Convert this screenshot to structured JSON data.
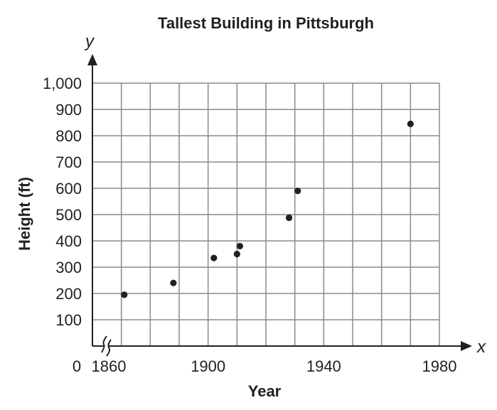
{
  "chart_data": {
    "type": "scatter",
    "title": "Tallest Building in Pittsburgh",
    "xlabel": "Year",
    "ylabel": "Height (ft)",
    "x_axis_var": "x",
    "y_axis_var": "y",
    "origin_label": "0",
    "xlim": [
      1860,
      1980
    ],
    "ylim": [
      0,
      1000
    ],
    "x_axis_break": true,
    "grid": true,
    "x_gridlines": [
      1860,
      1870,
      1880,
      1890,
      1900,
      1910,
      1920,
      1930,
      1940,
      1950,
      1960,
      1970,
      1980
    ],
    "y_gridlines": [
      100,
      200,
      300,
      400,
      500,
      600,
      700,
      800,
      900,
      1000
    ],
    "x_ticks": [
      {
        "value": 1860,
        "label": "1860"
      },
      {
        "value": 1900,
        "label": "1900"
      },
      {
        "value": 1940,
        "label": "1940"
      },
      {
        "value": 1980,
        "label": "1980"
      }
    ],
    "y_ticks": [
      {
        "value": 100,
        "label": "100"
      },
      {
        "value": 200,
        "label": "200"
      },
      {
        "value": 300,
        "label": "300"
      },
      {
        "value": 400,
        "label": "400"
      },
      {
        "value": 500,
        "label": "500"
      },
      {
        "value": 600,
        "label": "600"
      },
      {
        "value": 700,
        "label": "700"
      },
      {
        "value": 800,
        "label": "800"
      },
      {
        "value": 900,
        "label": "900"
      },
      {
        "value": 1000,
        "label": "1,000"
      }
    ],
    "points": [
      {
        "x": 1871,
        "y": 195
      },
      {
        "x": 1888,
        "y": 240
      },
      {
        "x": 1902,
        "y": 335
      },
      {
        "x": 1910,
        "y": 350
      },
      {
        "x": 1911,
        "y": 380
      },
      {
        "x": 1928,
        "y": 488
      },
      {
        "x": 1931,
        "y": 590
      },
      {
        "x": 1970,
        "y": 845
      }
    ],
    "colors": {
      "ink": "#231f20",
      "grid": "#8a8a8a",
      "background": "#ffffff"
    }
  }
}
